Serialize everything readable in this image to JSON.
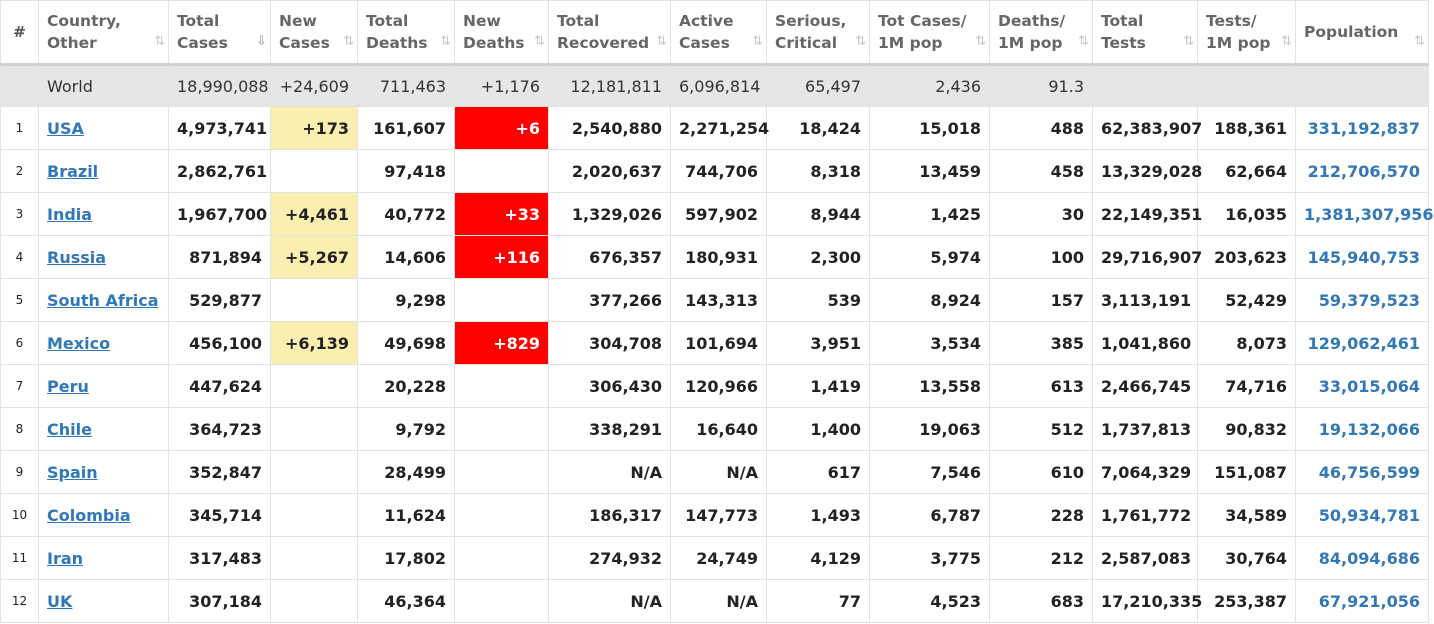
{
  "headers": {
    "idx": "#",
    "country": [
      "Country,",
      "Other"
    ],
    "total_cases": [
      "Total",
      "Cases"
    ],
    "new_cases": [
      "New",
      "Cases"
    ],
    "total_deaths": [
      "Total",
      "Deaths"
    ],
    "new_deaths": [
      "New",
      "Deaths"
    ],
    "total_recovered": [
      "Total",
      "Recovered"
    ],
    "active_cases": [
      "Active",
      "Cases"
    ],
    "serious": [
      "Serious,",
      "Critical"
    ],
    "cases_per_m": [
      "Tot Cases/",
      "1M pop"
    ],
    "deaths_per_m": [
      "Deaths/",
      "1M pop"
    ],
    "total_tests": [
      "Total",
      "Tests"
    ],
    "tests_per_m": [
      "Tests/",
      "1M pop"
    ],
    "population": "Population"
  },
  "sort_icon": "⇅",
  "sort_active_icon": "⇩",
  "world": {
    "country": "World",
    "total_cases": "18,990,088",
    "new_cases": "+24,609",
    "total_deaths": "711,463",
    "new_deaths": "+1,176",
    "total_recovered": "12,181,811",
    "active_cases": "6,096,814",
    "serious": "65,497",
    "cases_per_m": "2,436",
    "deaths_per_m": "91.3",
    "total_tests": "",
    "tests_per_m": "",
    "population": ""
  },
  "rows": [
    {
      "idx": "1",
      "country": "USA",
      "total_cases": "4,973,741",
      "new_cases": "+173",
      "total_deaths": "161,607",
      "new_deaths": "+6",
      "total_recovered": "2,540,880",
      "active_cases": "2,271,254",
      "serious": "18,424",
      "cases_per_m": "15,018",
      "deaths_per_m": "488",
      "total_tests": "62,383,907",
      "tests_per_m": "188,361",
      "population": "331,192,837"
    },
    {
      "idx": "2",
      "country": "Brazil",
      "total_cases": "2,862,761",
      "new_cases": "",
      "total_deaths": "97,418",
      "new_deaths": "",
      "total_recovered": "2,020,637",
      "active_cases": "744,706",
      "serious": "8,318",
      "cases_per_m": "13,459",
      "deaths_per_m": "458",
      "total_tests": "13,329,028",
      "tests_per_m": "62,664",
      "population": "212,706,570"
    },
    {
      "idx": "3",
      "country": "India",
      "total_cases": "1,967,700",
      "new_cases": "+4,461",
      "total_deaths": "40,772",
      "new_deaths": "+33",
      "total_recovered": "1,329,026",
      "active_cases": "597,902",
      "serious": "8,944",
      "cases_per_m": "1,425",
      "deaths_per_m": "30",
      "total_tests": "22,149,351",
      "tests_per_m": "16,035",
      "population": "1,381,307,956"
    },
    {
      "idx": "4",
      "country": "Russia",
      "total_cases": "871,894",
      "new_cases": "+5,267",
      "total_deaths": "14,606",
      "new_deaths": "+116",
      "total_recovered": "676,357",
      "active_cases": "180,931",
      "serious": "2,300",
      "cases_per_m": "5,974",
      "deaths_per_m": "100",
      "total_tests": "29,716,907",
      "tests_per_m": "203,623",
      "population": "145,940,753"
    },
    {
      "idx": "5",
      "country": "South Africa",
      "total_cases": "529,877",
      "new_cases": "",
      "total_deaths": "9,298",
      "new_deaths": "",
      "total_recovered": "377,266",
      "active_cases": "143,313",
      "serious": "539",
      "cases_per_m": "8,924",
      "deaths_per_m": "157",
      "total_tests": "3,113,191",
      "tests_per_m": "52,429",
      "population": "59,379,523"
    },
    {
      "idx": "6",
      "country": "Mexico",
      "total_cases": "456,100",
      "new_cases": "+6,139",
      "total_deaths": "49,698",
      "new_deaths": "+829",
      "total_recovered": "304,708",
      "active_cases": "101,694",
      "serious": "3,951",
      "cases_per_m": "3,534",
      "deaths_per_m": "385",
      "total_tests": "1,041,860",
      "tests_per_m": "8,073",
      "population": "129,062,461"
    },
    {
      "idx": "7",
      "country": "Peru",
      "total_cases": "447,624",
      "new_cases": "",
      "total_deaths": "20,228",
      "new_deaths": "",
      "total_recovered": "306,430",
      "active_cases": "120,966",
      "serious": "1,419",
      "cases_per_m": "13,558",
      "deaths_per_m": "613",
      "total_tests": "2,466,745",
      "tests_per_m": "74,716",
      "population": "33,015,064"
    },
    {
      "idx": "8",
      "country": "Chile",
      "total_cases": "364,723",
      "new_cases": "",
      "total_deaths": "9,792",
      "new_deaths": "",
      "total_recovered": "338,291",
      "active_cases": "16,640",
      "serious": "1,400",
      "cases_per_m": "19,063",
      "deaths_per_m": "512",
      "total_tests": "1,737,813",
      "tests_per_m": "90,832",
      "population": "19,132,066"
    },
    {
      "idx": "9",
      "country": "Spain",
      "total_cases": "352,847",
      "new_cases": "",
      "total_deaths": "28,499",
      "new_deaths": "",
      "total_recovered": "N/A",
      "active_cases": "N/A",
      "serious": "617",
      "cases_per_m": "7,546",
      "deaths_per_m": "610",
      "total_tests": "7,064,329",
      "tests_per_m": "151,087",
      "population": "46,756,599"
    },
    {
      "idx": "10",
      "country": "Colombia",
      "total_cases": "345,714",
      "new_cases": "",
      "total_deaths": "11,624",
      "new_deaths": "",
      "total_recovered": "186,317",
      "active_cases": "147,773",
      "serious": "1,493",
      "cases_per_m": "6,787",
      "deaths_per_m": "228",
      "total_tests": "1,761,772",
      "tests_per_m": "34,589",
      "population": "50,934,781"
    },
    {
      "idx": "11",
      "country": "Iran",
      "total_cases": "317,483",
      "new_cases": "",
      "total_deaths": "17,802",
      "new_deaths": "",
      "total_recovered": "274,932",
      "active_cases": "24,749",
      "serious": "4,129",
      "cases_per_m": "3,775",
      "deaths_per_m": "212",
      "total_tests": "2,587,083",
      "tests_per_m": "30,764",
      "population": "84,094,686"
    },
    {
      "idx": "12",
      "country": "UK",
      "total_cases": "307,184",
      "new_cases": "",
      "total_deaths": "46,364",
      "new_deaths": "",
      "total_recovered": "N/A",
      "active_cases": "N/A",
      "serious": "77",
      "cases_per_m": "4,523",
      "deaths_per_m": "683",
      "total_tests": "17,210,335",
      "tests_per_m": "253,387",
      "population": "67,921,056"
    }
  ],
  "colors": {
    "new_cases_highlight": "#fbeeb1",
    "new_deaths_highlight": "#ff0000",
    "link": "#3277b6",
    "world_row_bg": "#e6e6e6"
  }
}
